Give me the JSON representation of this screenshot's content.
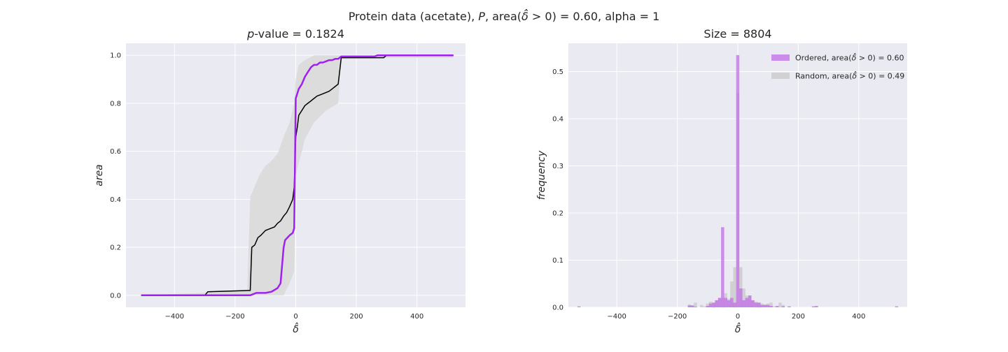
{
  "figure": {
    "suptitle": "Protein data (acetate), P, area(δ̂ > 0) = 0.60, alpha = 1",
    "suptitle_parts": {
      "pre": "Protein data (acetate), ",
      "p": "P",
      "mid": ", area(",
      "delta": "δ̂",
      "post": " > 0) = 0.60, alpha = 1"
    },
    "background": "#eaeaf2",
    "grid_color": "#ffffff"
  },
  "chart_data": [
    {
      "type": "line",
      "title": "p-value = 0.1824",
      "title_parts": {
        "italic": "p",
        "rest": "-value = 0.1824"
      },
      "xlabel": "δ̂",
      "ylabel": "area",
      "xlim": [
        -560,
        560
      ],
      "ylim": [
        -0.05,
        1.05
      ],
      "xticks": [
        -400,
        -200,
        0,
        200,
        400
      ],
      "xtick_labels": [
        "−400",
        "−200",
        "0",
        "200",
        "400"
      ],
      "yticks": [
        0.0,
        0.2,
        0.4,
        0.6,
        0.8,
        1.0
      ],
      "ytick_labels": [
        "0.0",
        "0.2",
        "0.4",
        "0.6",
        "0.8",
        "1.0"
      ],
      "grid": true,
      "band": {
        "color": "#dcdcdc",
        "x": [
          -520,
          -300,
          -160,
          -150,
          -140,
          -120,
          -100,
          -80,
          -60,
          -40,
          -20,
          -5,
          0,
          10,
          30,
          60,
          100,
          140,
          150,
          520
        ],
        "lower": [
          0.0,
          0.0,
          0.0,
          0.0,
          0.0,
          0.0,
          0.0,
          0.0,
          0.0,
          0.0,
          0.05,
          0.1,
          0.5,
          0.55,
          0.65,
          0.72,
          0.77,
          0.8,
          0.99,
          0.99
        ],
        "upper": [
          0.0,
          0.01,
          0.02,
          0.41,
          0.44,
          0.5,
          0.54,
          0.56,
          0.59,
          0.66,
          0.72,
          0.8,
          0.9,
          0.96,
          0.98,
          1.0,
          1.0,
          1.0,
          1.0,
          1.0
        ]
      },
      "series": [
        {
          "color": "#000000",
          "width": 1.5,
          "x": [
            -510,
            -300,
            -290,
            -150,
            -145,
            -135,
            -125,
            -115,
            -100,
            -90,
            -80,
            -70,
            -60,
            -50,
            -40,
            -30,
            -20,
            -10,
            -5,
            0,
            5,
            10,
            20,
            30,
            40,
            50,
            60,
            70,
            80,
            90,
            100,
            110,
            120,
            130,
            140,
            150,
            160,
            290,
            300,
            520
          ],
          "y": [
            0.0,
            0.0,
            0.015,
            0.02,
            0.2,
            0.21,
            0.24,
            0.25,
            0.27,
            0.275,
            0.28,
            0.285,
            0.3,
            0.31,
            0.33,
            0.345,
            0.37,
            0.4,
            0.45,
            0.66,
            0.7,
            0.75,
            0.77,
            0.79,
            0.8,
            0.81,
            0.82,
            0.83,
            0.835,
            0.84,
            0.845,
            0.85,
            0.86,
            0.87,
            0.88,
            0.99,
            0.99,
            0.99,
            1.0,
            1.0
          ]
        },
        {
          "color": "#a020f0",
          "width": 2.5,
          "x": [
            -510,
            -160,
            -150,
            -140,
            -130,
            -120,
            -100,
            -80,
            -60,
            -50,
            -40,
            -35,
            -20,
            -10,
            -5,
            0,
            10,
            20,
            30,
            40,
            50,
            60,
            70,
            80,
            90,
            100,
            110,
            120,
            130,
            140,
            150,
            200,
            260,
            270,
            520
          ],
          "y": [
            0.0,
            0.0,
            0.0,
            0.005,
            0.01,
            0.01,
            0.01,
            0.015,
            0.03,
            0.05,
            0.2,
            0.23,
            0.25,
            0.26,
            0.28,
            0.82,
            0.86,
            0.88,
            0.91,
            0.93,
            0.95,
            0.96,
            0.96,
            0.97,
            0.97,
            0.975,
            0.98,
            0.98,
            0.985,
            0.985,
            0.995,
            0.995,
            0.995,
            1.0,
            1.0
          ]
        }
      ]
    },
    {
      "type": "bar",
      "title": "Size = 8804",
      "xlabel": "δ̂",
      "ylabel": "frequency",
      "xlim": [
        -560,
        560
      ],
      "ylim": [
        0,
        0.56
      ],
      "xticks": [
        -400,
        -200,
        0,
        200,
        400
      ],
      "xtick_labels": [
        "−400",
        "−200",
        "0",
        "200",
        "400"
      ],
      "yticks": [
        0.0,
        0.1,
        0.2,
        0.3,
        0.4,
        0.5
      ],
      "ytick_labels": [
        "0.0",
        "0.1",
        "0.2",
        "0.3",
        "0.4",
        "0.5"
      ],
      "grid": true,
      "bin_width": 10.5,
      "legend_position": "top-right",
      "series": [
        {
          "name": "Ordered, area(δ̂ > 0) = 0.60",
          "legend_parts": {
            "pre": "Ordered, area(",
            "delta": "δ̂",
            "post": " > 0) = 0.60"
          },
          "color": "#c06ee6",
          "opacity": 0.75,
          "x": [
            -525,
            -160,
            -150,
            -140,
            -100,
            -90,
            -80,
            -70,
            -60,
            -50,
            -40,
            -30,
            -20,
            -10,
            0,
            10,
            20,
            30,
            40,
            50,
            60,
            70,
            80,
            90,
            100,
            110,
            130,
            150,
            170,
            250,
            260,
            525
          ],
          "y": [
            0.002,
            0.004,
            0.004,
            0.001,
            0.003,
            0.008,
            0.01,
            0.015,
            0.02,
            0.17,
            0.02,
            0.015,
            0.02,
            0.01,
            0.535,
            0.04,
            0.015,
            0.02,
            0.025,
            0.015,
            0.01,
            0.01,
            0.005,
            0.005,
            0.005,
            0.003,
            0.003,
            0.002,
            0.002,
            0.002,
            0.003,
            0.002
          ]
        },
        {
          "name": "Random, area(δ̂ > 0) = 0.49",
          "legend_parts": {
            "pre": "Random, area(",
            "delta": "δ̂",
            "post": " > 0) = 0.49"
          },
          "color": "#c8c8c8",
          "opacity": 0.75,
          "x": [
            -160,
            -150,
            -140,
            -120,
            -110,
            -100,
            -90,
            -80,
            -70,
            -60,
            -50,
            -40,
            -30,
            -20,
            -10,
            0,
            10,
            20,
            30,
            40,
            50,
            60,
            70,
            80,
            90,
            100,
            110,
            120,
            140,
            150
          ],
          "y": [
            0.006,
            0.004,
            0.01,
            0.005,
            0.002,
            0.008,
            0.012,
            0.01,
            0.015,
            0.02,
            0.02,
            0.03,
            0.018,
            0.055,
            0.085,
            0.455,
            0.085,
            0.04,
            0.025,
            0.025,
            0.015,
            0.012,
            0.01,
            0.008,
            0.006,
            0.008,
            0.01,
            0.002,
            0.01,
            0.005
          ]
        }
      ]
    }
  ]
}
